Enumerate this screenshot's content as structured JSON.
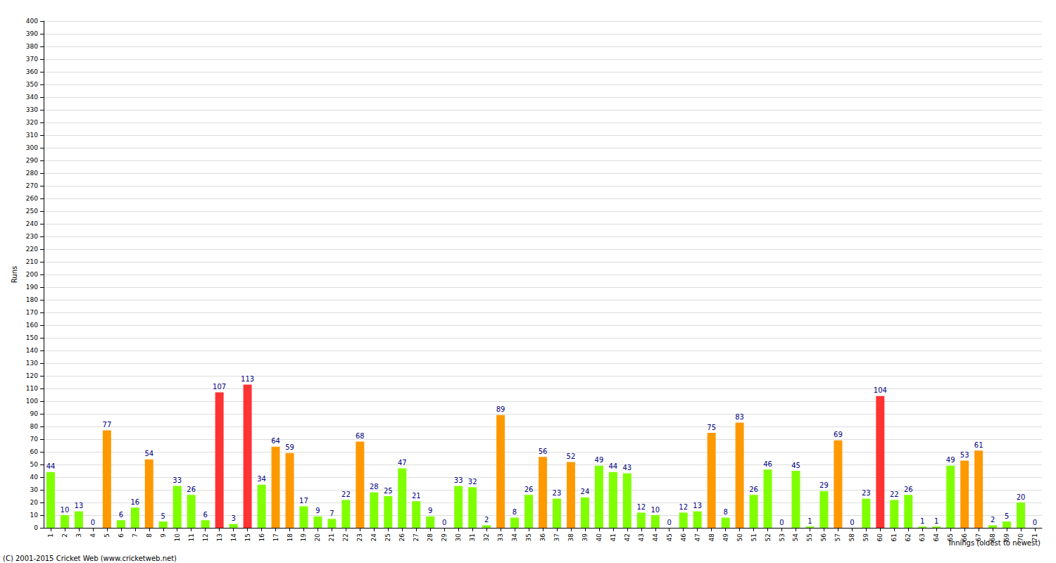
{
  "chart_data": {
    "type": "bar",
    "x_label": "Innings (oldest to newest)",
    "y_label": "Runs",
    "annotations": [
      "(C) 2001-2015 Cricket Web (www.cricketweb.net)"
    ],
    "categories": [
      "1",
      "2",
      "3",
      "4",
      "5",
      "6",
      "7",
      "8",
      "9",
      "10",
      "11",
      "12",
      "13",
      "14",
      "15",
      "16",
      "17",
      "18",
      "19",
      "20",
      "21",
      "22",
      "23",
      "24",
      "25",
      "26",
      "27",
      "28",
      "29",
      "30",
      "31",
      "32",
      "33",
      "34",
      "35",
      "36",
      "37",
      "38",
      "39",
      "40",
      "41",
      "42",
      "43",
      "44",
      "45",
      "46",
      "47",
      "48",
      "49",
      "50",
      "51",
      "52",
      "53",
      "54",
      "55",
      "56",
      "57",
      "58",
      "59",
      "60",
      "61",
      "62",
      "63",
      "64",
      "65",
      "66",
      "67",
      "68",
      "69",
      "70",
      "71"
    ],
    "values": [
      44,
      10,
      13,
      0,
      77,
      6,
      16,
      54,
      5,
      33,
      26,
      6,
      107,
      3,
      113,
      34,
      64,
      59,
      17,
      9,
      7,
      22,
      68,
      28,
      25,
      47,
      21,
      9,
      0,
      33,
      32,
      2,
      89,
      8,
      26,
      56,
      23,
      52,
      24,
      49,
      44,
      43,
      12,
      10,
      0,
      12,
      13,
      75,
      8,
      83,
      26,
      46,
      0,
      45,
      1,
      29,
      69,
      0,
      23,
      104,
      22,
      26,
      1,
      1,
      49,
      53,
      61,
      2,
      5,
      20,
      0
    ],
    "colors": [
      "#80ff00",
      "#80ff00",
      "#80ff00",
      "#80ff00",
      "#ff9900",
      "#80ff00",
      "#80ff00",
      "#ff9900",
      "#80ff00",
      "#80ff00",
      "#80ff00",
      "#80ff00",
      "#ff3333",
      "#80ff00",
      "#ff3333",
      "#80ff00",
      "#ff9900",
      "#ff9900",
      "#80ff00",
      "#80ff00",
      "#80ff00",
      "#80ff00",
      "#ff9900",
      "#80ff00",
      "#80ff00",
      "#80ff00",
      "#80ff00",
      "#80ff00",
      "#80ff00",
      "#80ff00",
      "#80ff00",
      "#80ff00",
      "#ff9900",
      "#80ff00",
      "#80ff00",
      "#ff9900",
      "#80ff00",
      "#ff9900",
      "#80ff00",
      "#80ff00",
      "#80ff00",
      "#80ff00",
      "#80ff00",
      "#80ff00",
      "#80ff00",
      "#80ff00",
      "#80ff00",
      "#ff9900",
      "#80ff00",
      "#ff9900",
      "#80ff00",
      "#80ff00",
      "#80ff00",
      "#80ff00",
      "#80ff00",
      "#80ff00",
      "#ff9900",
      "#80ff00",
      "#80ff00",
      "#ff3333",
      "#80ff00",
      "#80ff00",
      "#80ff00",
      "#80ff00",
      "#80ff00",
      "#ff9900",
      "#ff9900",
      "#80ff00",
      "#80ff00",
      "#80ff00",
      "#80ff00"
    ],
    "ylim": [
      0,
      400
    ],
    "yticks": [
      0,
      10,
      20,
      30,
      40,
      50,
      60,
      70,
      80,
      90,
      100,
      110,
      120,
      130,
      140,
      150,
      160,
      170,
      180,
      190,
      200,
      210,
      220,
      230,
      240,
      250,
      260,
      270,
      280,
      290,
      300,
      310,
      320,
      330,
      340,
      350,
      360,
      370,
      380,
      390,
      400
    ],
    "grid": true,
    "data_labels": true
  }
}
